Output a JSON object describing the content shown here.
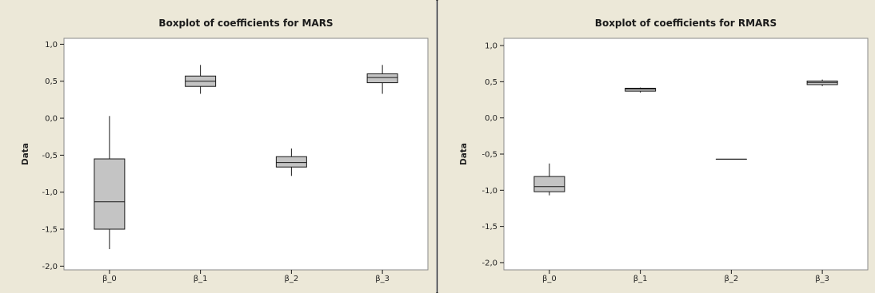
{
  "colors": {
    "outer_bg": "#ece8d8",
    "plot_bg": "#ffffff",
    "box_fill": "#c4c4c4",
    "stroke": "#1a1a1a",
    "frame": "#8a8a8a"
  },
  "chart_data": [
    {
      "type": "boxplot",
      "title": "Boxplot of coefficients for MARS",
      "ylabel": "Data",
      "ylim": [
        -2.05,
        1.08
      ],
      "yticks": [
        1.0,
        0.5,
        0.0,
        -0.5,
        -1.0,
        -1.5,
        -2.0
      ],
      "ytick_labels": [
        "1,0",
        "0,5",
        "0,0",
        "-0,5",
        "-1,0",
        "-1,5",
        "-2,0"
      ],
      "categories": [
        "β_0",
        "β_1",
        "β_2",
        "β_3"
      ],
      "boxes": [
        {
          "category": "β_0",
          "whisker_low": -1.77,
          "q1": -1.5,
          "median": -1.13,
          "q3": -0.55,
          "whisker_high": 0.03
        },
        {
          "category": "β_1",
          "whisker_low": 0.33,
          "q1": 0.43,
          "median": 0.5,
          "q3": 0.57,
          "whisker_high": 0.72
        },
        {
          "category": "β_2",
          "whisker_low": -0.78,
          "q1": -0.66,
          "median": -0.6,
          "q3": -0.52,
          "whisker_high": -0.41
        },
        {
          "category": "β_3",
          "whisker_low": 0.33,
          "q1": 0.48,
          "median": 0.55,
          "q3": 0.6,
          "whisker_high": 0.72
        }
      ]
    },
    {
      "type": "boxplot",
      "title": "Boxplot of coefficients for RMARS",
      "ylabel": "Data",
      "ylim": [
        -2.1,
        1.1
      ],
      "yticks": [
        1.0,
        0.5,
        0.0,
        -0.5,
        -1.0,
        -1.5,
        -2.0
      ],
      "ytick_labels": [
        "1,0",
        "0,5",
        "0,0",
        "-0,5",
        "-1,0",
        "-1,5",
        "-2,0"
      ],
      "categories": [
        "β_0",
        "β_1",
        "β_2",
        "β_3"
      ],
      "boxes": [
        {
          "category": "β_0",
          "whisker_low": -1.07,
          "q1": -1.02,
          "median": -0.95,
          "q3": -0.81,
          "whisker_high": -0.63
        },
        {
          "category": "β_1",
          "whisker_low": 0.35,
          "q1": 0.37,
          "median": 0.4,
          "q3": 0.41,
          "whisker_high": 0.42
        },
        {
          "category": "β_2",
          "whisker_low": -0.57,
          "q1": -0.57,
          "median": -0.57,
          "q3": -0.57,
          "whisker_high": -0.57
        },
        {
          "category": "β_3",
          "whisker_low": 0.44,
          "q1": 0.46,
          "median": 0.49,
          "q3": 0.51,
          "whisker_high": 0.53
        }
      ]
    }
  ]
}
